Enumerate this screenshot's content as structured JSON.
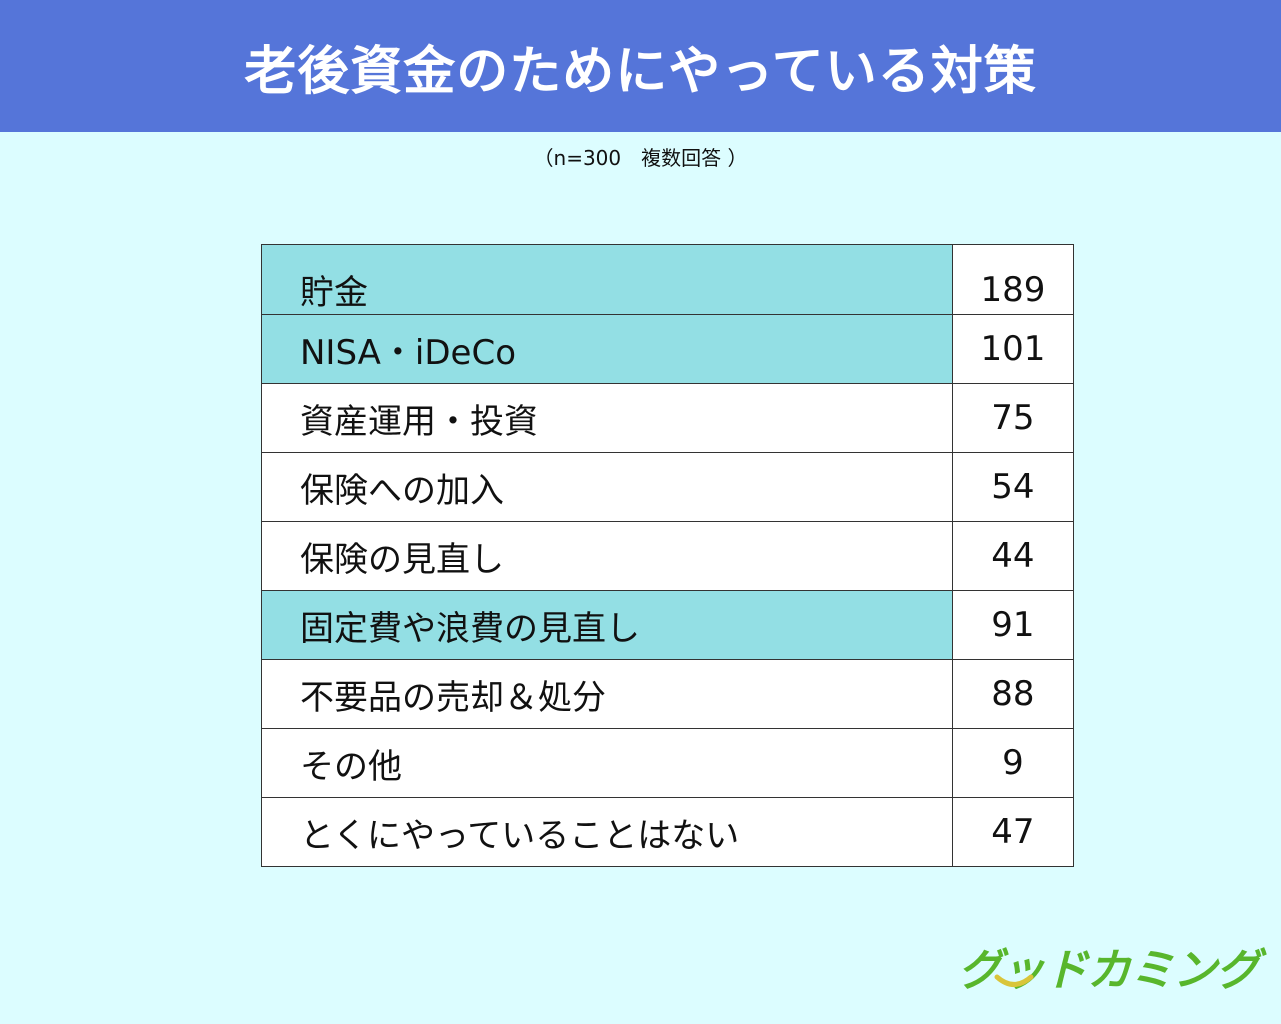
{
  "header": {
    "title": "老後資金のためにやっている対策",
    "subtitle": "（n=300　複数回答 ）"
  },
  "colors": {
    "banner": "#5575d9",
    "background": "#dcfdff",
    "highlight_row": "#93dfe4",
    "normal_row": "#ffffff",
    "logo": "#58b62c",
    "logo_swoosh": "#d9c53a"
  },
  "chart_data": {
    "type": "table",
    "title": "老後資金のためにやっている対策",
    "subtitle": "（n=300　複数回答 ）",
    "rows": [
      {
        "label": "貯金",
        "value": "189",
        "highlight": true
      },
      {
        "label": "NISA・iDeCo",
        "value": "101",
        "highlight": true
      },
      {
        "label": "資産運用・投資",
        "value": "75",
        "highlight": false
      },
      {
        "label": "保険への加入",
        "value": "54",
        "highlight": false
      },
      {
        "label": "保険の見直し",
        "value": "44",
        "highlight": false
      },
      {
        "label": "固定費や浪費の見直し",
        "value": "91",
        "highlight": true
      },
      {
        "label": "不要品の売却＆処分",
        "value": "88",
        "highlight": false
      },
      {
        "label": "その他",
        "value": "9",
        "highlight": false
      },
      {
        "label": "とくにやっていることはない",
        "value": "47",
        "highlight": false
      }
    ]
  },
  "logo": {
    "text": "グッドカミング",
    "icon": "smile-swoosh-icon"
  }
}
